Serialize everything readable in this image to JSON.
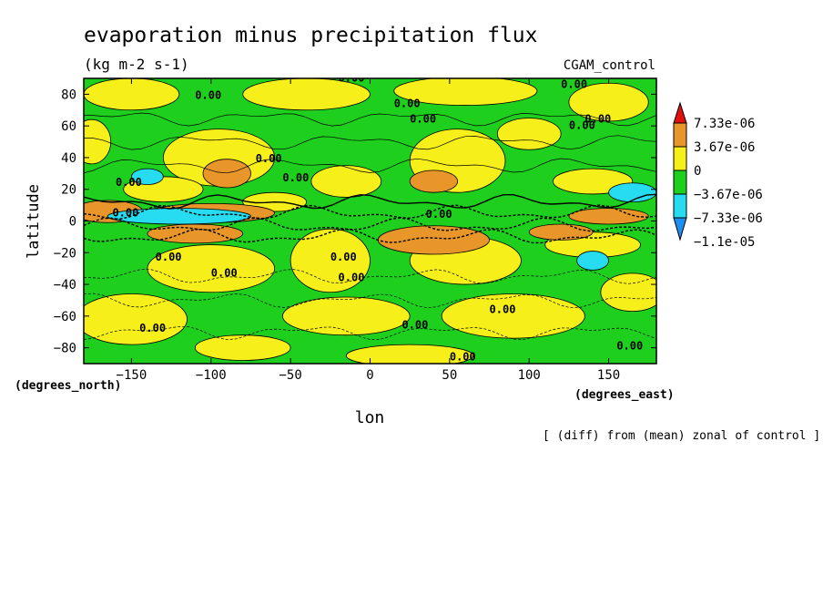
{
  "chart_data": {
    "type": "heatmap",
    "title": "evaporation minus precipitation flux",
    "subtitle": "(kg m-2 s-1)",
    "run_label": "CGAM_control",
    "xlabel": "lon",
    "ylabel": "latitude",
    "x_units": "(degrees_east)",
    "y_units": "(degrees_north)",
    "footnote": "[ (diff) from (mean) zonal of control ]",
    "xlim": [
      -180,
      180
    ],
    "ylim": [
      -90,
      90
    ],
    "xticks": [
      -150,
      -100,
      -50,
      0,
      50,
      100,
      150
    ],
    "yticks": [
      80,
      60,
      40,
      20,
      0,
      -20,
      -40,
      -60,
      -80
    ],
    "contour_label": "0.00",
    "colorbar": {
      "labels": [
        "7.33e-06",
        "3.67e-06",
        "0",
        "-3.67e-06",
        "-7.33e-06",
        "-1.1e-05"
      ],
      "levels": [
        1.1e-05,
        7.33e-06,
        3.67e-06,
        0,
        -3.67e-06,
        -7.33e-06,
        -1.1e-05,
        -1.47e-05
      ],
      "colors": [
        "#e01010",
        "#e8962a",
        "#f7ef1a",
        "#1ecf1e",
        "#27dcf0",
        "#1e8ef0"
      ]
    },
    "features": [
      {
        "lon": -170,
        "lat": 7,
        "rx": 14,
        "ry": 4,
        "level": "#e01010"
      },
      {
        "lon": -165,
        "lat": 6,
        "rx": 22,
        "ry": 7,
        "level": "#e8962a"
      },
      {
        "lon": -100,
        "lat": 5,
        "rx": 40,
        "ry": 6,
        "level": "#e8962a"
      },
      {
        "lon": -110,
        "lat": -8,
        "rx": 30,
        "ry": 6,
        "level": "#e8962a"
      },
      {
        "lon": 40,
        "lat": -12,
        "rx": 35,
        "ry": 9,
        "level": "#e8962a"
      },
      {
        "lon": 120,
        "lat": -7,
        "rx": 20,
        "ry": 5,
        "level": "#e8962a"
      },
      {
        "lon": 150,
        "lat": 3,
        "rx": 25,
        "ry": 5,
        "level": "#e8962a"
      },
      {
        "lon": -90,
        "lat": 30,
        "rx": 15,
        "ry": 9,
        "level": "#e8962a"
      },
      {
        "lon": 40,
        "lat": 25,
        "rx": 15,
        "ry": 7,
        "level": "#e8962a"
      },
      {
        "lon": 165,
        "lat": 18,
        "rx": 15,
        "ry": 6,
        "level": "#27dcf0"
      },
      {
        "lon": -120,
        "lat": 3,
        "rx": 45,
        "ry": 5,
        "level": "#27dcf0"
      },
      {
        "lon": -140,
        "lat": 28,
        "rx": 10,
        "ry": 5,
        "level": "#27dcf0"
      },
      {
        "lon": 140,
        "lat": -25,
        "rx": 10,
        "ry": 6,
        "level": "#27dcf0"
      }
    ]
  }
}
